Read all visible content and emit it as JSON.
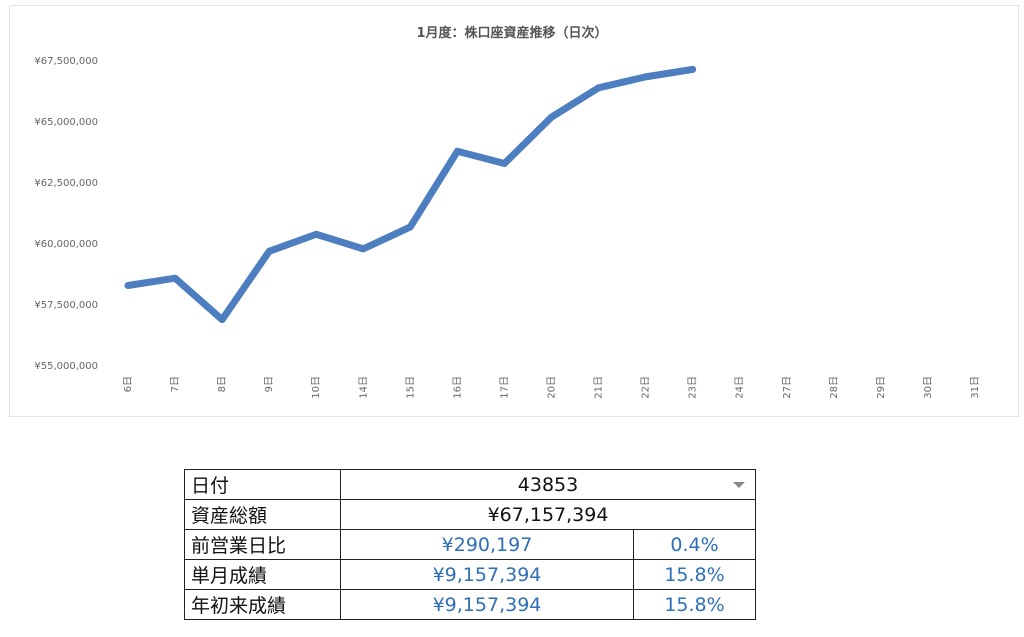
{
  "chart_data": {
    "type": "line",
    "title": "1月度：株口座資産推移（日次）",
    "xlabel": "",
    "ylabel": "",
    "categories": [
      "6日",
      "7日",
      "8日",
      "9日",
      "10日",
      "14日",
      "15日",
      "16日",
      "17日",
      "20日",
      "21日",
      "22日",
      "23日",
      "24日",
      "27日",
      "28日",
      "29日",
      "30日",
      "31日"
    ],
    "series": [
      {
        "values": [
          58300000,
          58600000,
          56900000,
          59700000,
          60400000,
          59800000,
          60700000,
          63800000,
          63300000,
          65200000,
          66400000,
          66850000,
          67157394,
          null,
          null,
          null,
          null,
          null,
          null
        ],
        "color": "#4d7ec0"
      }
    ],
    "ylim": [
      55000000,
      67500000
    ],
    "yticks": [
      55000000,
      57500000,
      60000000,
      62500000,
      65000000,
      67500000
    ],
    "ytick_labels": [
      "¥55,000,000",
      "¥57,500,000",
      "¥60,000,000",
      "¥62,500,000",
      "¥65,000,000",
      "¥67,500,000"
    ],
    "grid": false,
    "legend": "none"
  },
  "summary": {
    "date_label": "日付",
    "date_value": "43853",
    "total_label": "資産総額",
    "total_value": "¥67,157,394",
    "prev_day_label": "前営業日比",
    "prev_day_amount": "¥290,197",
    "prev_day_pct": "0.4%",
    "month_label": "単月成績",
    "month_amount": "¥9,157,394",
    "month_pct": "15.8%",
    "ytd_label": "年初来成績",
    "ytd_amount": "¥9,157,394",
    "ytd_pct": "15.8%"
  }
}
